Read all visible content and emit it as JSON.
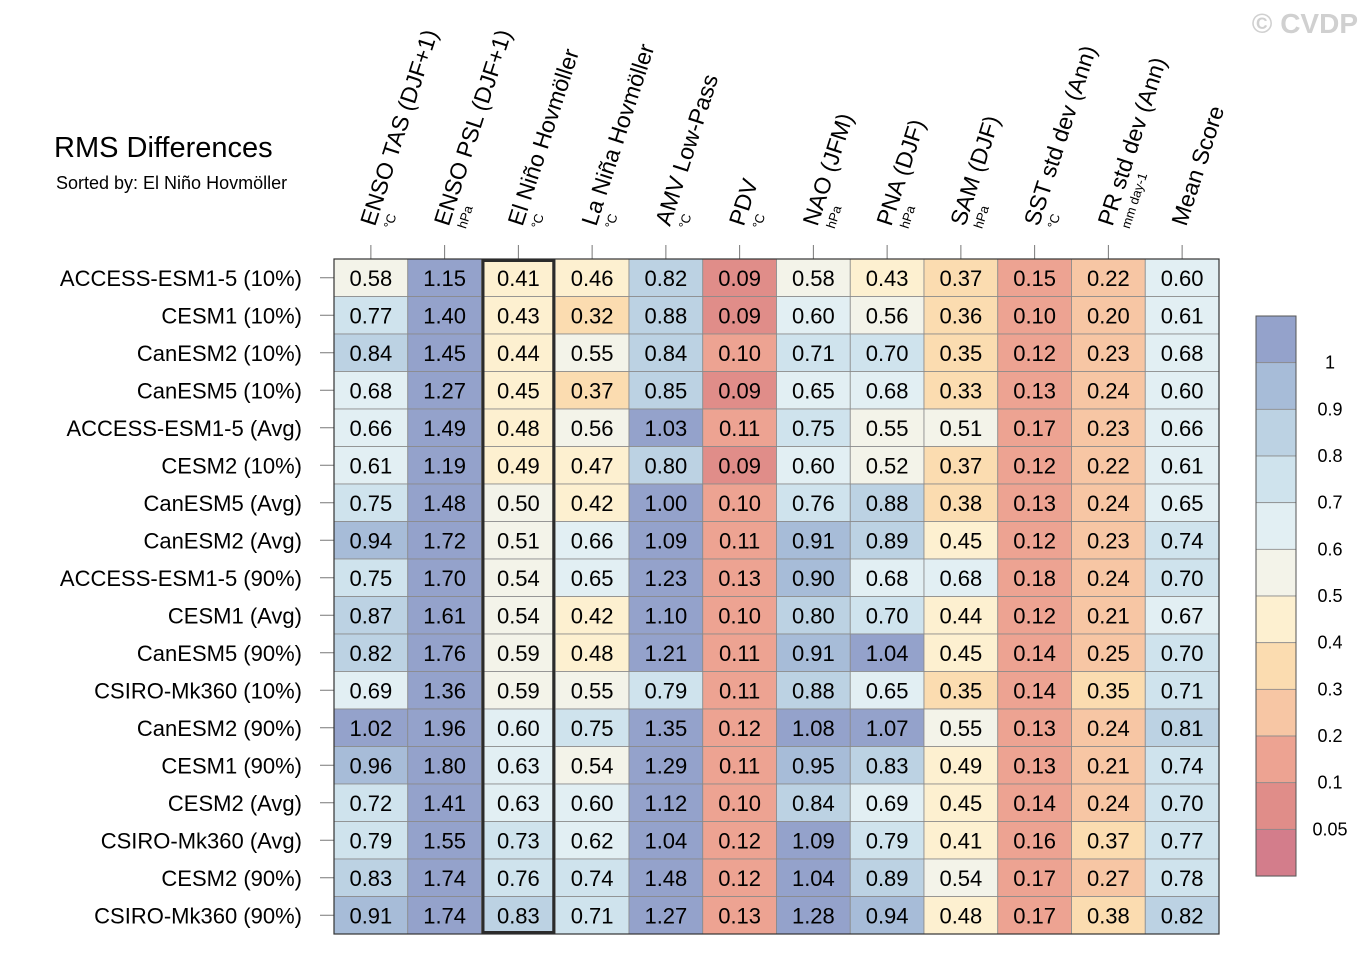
{
  "title": "RMS Differences",
  "subtitle": "Sorted by: El Niño Hovmöller",
  "watermark": "© CVDP",
  "chart_data": {
    "type": "heatmap",
    "columns": [
      {
        "label": "ENSO TAS (DJF+1)",
        "unit": "°C"
      },
      {
        "label": "ENSO PSL (DJF+1)",
        "unit": "hPa"
      },
      {
        "label": "El Niño Hovmöller",
        "unit": "°C"
      },
      {
        "label": "La Niña Hovmöller",
        "unit": "°C"
      },
      {
        "label": "AMV Low-Pass",
        "unit": "°C"
      },
      {
        "label": "PDV",
        "unit": "°C"
      },
      {
        "label": "NAO (JFM)",
        "unit": "hPa"
      },
      {
        "label": "PNA (DJF)",
        "unit": "hPa"
      },
      {
        "label": "SAM (DJF)",
        "unit": "hPa"
      },
      {
        "label": "SST std dev (Ann)",
        "unit": "°C"
      },
      {
        "label": "PR std dev (Ann)",
        "unit": "mm day-1"
      },
      {
        "label": "Mean Score",
        "unit": ""
      }
    ],
    "rows": [
      "ACCESS-ESM1-5 (10%)",
      "CESM1 (10%)",
      "CanESM2 (10%)",
      "CanESM5 (10%)",
      "ACCESS-ESM1-5 (Avg)",
      "CESM2 (10%)",
      "CanESM5 (Avg)",
      "CanESM2 (Avg)",
      "ACCESS-ESM1-5 (90%)",
      "CESM1 (Avg)",
      "CanESM5 (90%)",
      "CSIRO-Mk360 (10%)",
      "CanESM2 (90%)",
      "CESM1 (90%)",
      "CESM2 (Avg)",
      "CSIRO-Mk360 (Avg)",
      "CESM2 (90%)",
      "CSIRO-Mk360 (90%)"
    ],
    "values": [
      [
        "0.58",
        "1.15",
        "0.41",
        "0.46",
        "0.82",
        "0.09",
        "0.58",
        "0.43",
        "0.37",
        "0.15",
        "0.22",
        "0.60"
      ],
      [
        "0.77",
        "1.40",
        "0.43",
        "0.32",
        "0.88",
        "0.09",
        "0.60",
        "0.56",
        "0.36",
        "0.10",
        "0.20",
        "0.61"
      ],
      [
        "0.84",
        "1.45",
        "0.44",
        "0.55",
        "0.84",
        "0.10",
        "0.71",
        "0.70",
        "0.35",
        "0.12",
        "0.23",
        "0.68"
      ],
      [
        "0.68",
        "1.27",
        "0.45",
        "0.37",
        "0.85",
        "0.09",
        "0.65",
        "0.68",
        "0.33",
        "0.13",
        "0.24",
        "0.60"
      ],
      [
        "0.66",
        "1.49",
        "0.48",
        "0.56",
        "1.03",
        "0.11",
        "0.75",
        "0.55",
        "0.51",
        "0.17",
        "0.23",
        "0.66"
      ],
      [
        "0.61",
        "1.19",
        "0.49",
        "0.47",
        "0.80",
        "0.09",
        "0.60",
        "0.52",
        "0.37",
        "0.12",
        "0.22",
        "0.61"
      ],
      [
        "0.75",
        "1.48",
        "0.50",
        "0.42",
        "1.00",
        "0.10",
        "0.76",
        "0.88",
        "0.38",
        "0.13",
        "0.24",
        "0.65"
      ],
      [
        "0.94",
        "1.72",
        "0.51",
        "0.66",
        "1.09",
        "0.11",
        "0.91",
        "0.89",
        "0.45",
        "0.12",
        "0.23",
        "0.74"
      ],
      [
        "0.75",
        "1.70",
        "0.54",
        "0.65",
        "1.23",
        "0.13",
        "0.90",
        "0.68",
        "0.68",
        "0.18",
        "0.24",
        "0.70"
      ],
      [
        "0.87",
        "1.61",
        "0.54",
        "0.42",
        "1.10",
        "0.10",
        "0.80",
        "0.70",
        "0.44",
        "0.12",
        "0.21",
        "0.67"
      ],
      [
        "0.82",
        "1.76",
        "0.59",
        "0.48",
        "1.21",
        "0.11",
        "0.91",
        "1.04",
        "0.45",
        "0.14",
        "0.25",
        "0.70"
      ],
      [
        "0.69",
        "1.36",
        "0.59",
        "0.55",
        "0.79",
        "0.11",
        "0.88",
        "0.65",
        "0.35",
        "0.14",
        "0.35",
        "0.71"
      ],
      [
        "1.02",
        "1.96",
        "0.60",
        "0.75",
        "1.35",
        "0.12",
        "1.08",
        "1.07",
        "0.55",
        "0.13",
        "0.24",
        "0.81"
      ],
      [
        "0.96",
        "1.80",
        "0.63",
        "0.54",
        "1.29",
        "0.11",
        "0.95",
        "0.83",
        "0.49",
        "0.13",
        "0.21",
        "0.74"
      ],
      [
        "0.72",
        "1.41",
        "0.63",
        "0.60",
        "1.12",
        "0.10",
        "0.84",
        "0.69",
        "0.45",
        "0.14",
        "0.24",
        "0.70"
      ],
      [
        "0.79",
        "1.55",
        "0.73",
        "0.62",
        "1.04",
        "0.12",
        "1.09",
        "0.79",
        "0.41",
        "0.16",
        "0.37",
        "0.77"
      ],
      [
        "0.83",
        "1.74",
        "0.76",
        "0.74",
        "1.48",
        "0.12",
        "1.04",
        "0.89",
        "0.54",
        "0.17",
        "0.27",
        "0.78"
      ],
      [
        "0.91",
        "1.74",
        "0.83",
        "0.71",
        "1.27",
        "0.13",
        "1.28",
        "0.94",
        "0.48",
        "0.17",
        "0.38",
        "0.82"
      ]
    ],
    "highlighted_column": "El Niño Hovmöller",
    "colorbar": {
      "labels": [
        "1",
        "0.9",
        "0.8",
        "0.7",
        "0.6",
        "0.5",
        "0.4",
        "0.3",
        "0.2",
        "0.1",
        "0.05"
      ],
      "thresholds": [
        1.0,
        0.9,
        0.8,
        0.7,
        0.6,
        0.5,
        0.4,
        0.3,
        0.2,
        0.1,
        0.05
      ],
      "colors": [
        "#94a2cb",
        "#a7bcd8",
        "#bcd2e3",
        "#cfe3ed",
        "#e2eff3",
        "#f3f3e9",
        "#fdf0d0",
        "#fbdcb0",
        "#f7c6a4",
        "#eda392",
        "#e08d89",
        "#d37d8b"
      ]
    }
  }
}
